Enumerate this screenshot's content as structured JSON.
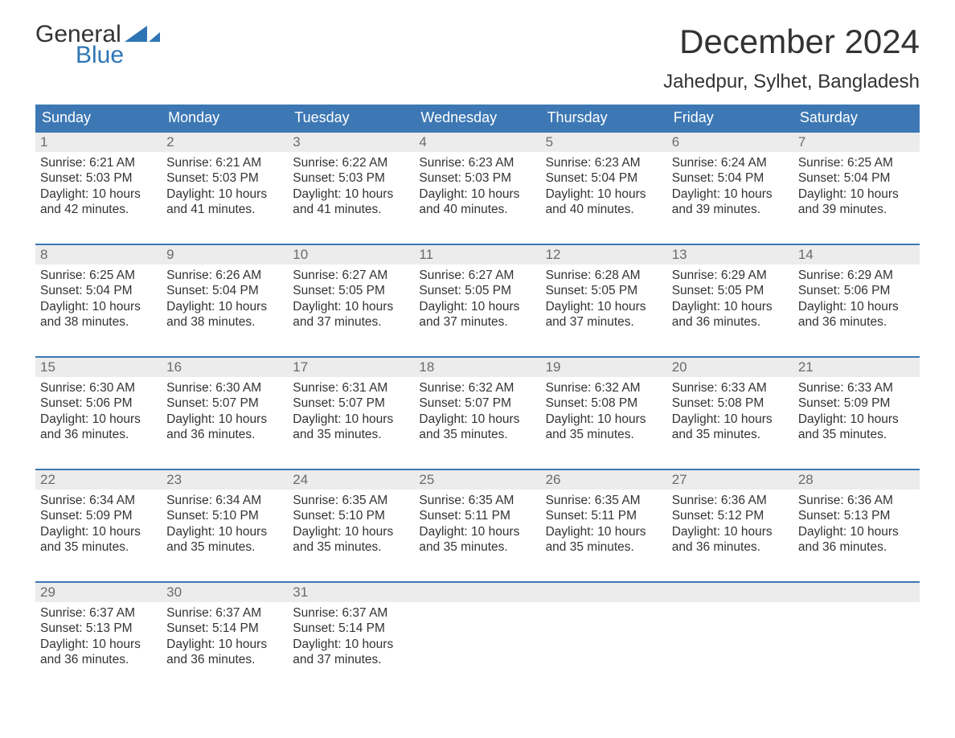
{
  "logo": {
    "line1": "General",
    "line2": "Blue",
    "tri_color": "#2f75b5"
  },
  "header": {
    "month_title": "December 2024",
    "location": "Jahedpur, Sylhet, Bangladesh"
  },
  "colors": {
    "header_bg": "#3d78b4",
    "header_text": "#ffffff",
    "row_accent": "#3d78b4",
    "daynum_bg": "#ececec",
    "daynum_text": "#6b6b6b",
    "body_text": "#333333",
    "logo_blue": "#2f75b5"
  },
  "calendar": {
    "days_of_week": [
      "Sunday",
      "Monday",
      "Tuesday",
      "Wednesday",
      "Thursday",
      "Friday",
      "Saturday"
    ],
    "weeks": [
      [
        {
          "n": "1",
          "sunrise": "Sunrise: 6:21 AM",
          "sunset": "Sunset: 5:03 PM",
          "dl1": "Daylight: 10 hours",
          "dl2": "and 42 minutes."
        },
        {
          "n": "2",
          "sunrise": "Sunrise: 6:21 AM",
          "sunset": "Sunset: 5:03 PM",
          "dl1": "Daylight: 10 hours",
          "dl2": "and 41 minutes."
        },
        {
          "n": "3",
          "sunrise": "Sunrise: 6:22 AM",
          "sunset": "Sunset: 5:03 PM",
          "dl1": "Daylight: 10 hours",
          "dl2": "and 41 minutes."
        },
        {
          "n": "4",
          "sunrise": "Sunrise: 6:23 AM",
          "sunset": "Sunset: 5:03 PM",
          "dl1": "Daylight: 10 hours",
          "dl2": "and 40 minutes."
        },
        {
          "n": "5",
          "sunrise": "Sunrise: 6:23 AM",
          "sunset": "Sunset: 5:04 PM",
          "dl1": "Daylight: 10 hours",
          "dl2": "and 40 minutes."
        },
        {
          "n": "6",
          "sunrise": "Sunrise: 6:24 AM",
          "sunset": "Sunset: 5:04 PM",
          "dl1": "Daylight: 10 hours",
          "dl2": "and 39 minutes."
        },
        {
          "n": "7",
          "sunrise": "Sunrise: 6:25 AM",
          "sunset": "Sunset: 5:04 PM",
          "dl1": "Daylight: 10 hours",
          "dl2": "and 39 minutes."
        }
      ],
      [
        {
          "n": "8",
          "sunrise": "Sunrise: 6:25 AM",
          "sunset": "Sunset: 5:04 PM",
          "dl1": "Daylight: 10 hours",
          "dl2": "and 38 minutes."
        },
        {
          "n": "9",
          "sunrise": "Sunrise: 6:26 AM",
          "sunset": "Sunset: 5:04 PM",
          "dl1": "Daylight: 10 hours",
          "dl2": "and 38 minutes."
        },
        {
          "n": "10",
          "sunrise": "Sunrise: 6:27 AM",
          "sunset": "Sunset: 5:05 PM",
          "dl1": "Daylight: 10 hours",
          "dl2": "and 37 minutes."
        },
        {
          "n": "11",
          "sunrise": "Sunrise: 6:27 AM",
          "sunset": "Sunset: 5:05 PM",
          "dl1": "Daylight: 10 hours",
          "dl2": "and 37 minutes."
        },
        {
          "n": "12",
          "sunrise": "Sunrise: 6:28 AM",
          "sunset": "Sunset: 5:05 PM",
          "dl1": "Daylight: 10 hours",
          "dl2": "and 37 minutes."
        },
        {
          "n": "13",
          "sunrise": "Sunrise: 6:29 AM",
          "sunset": "Sunset: 5:05 PM",
          "dl1": "Daylight: 10 hours",
          "dl2": "and 36 minutes."
        },
        {
          "n": "14",
          "sunrise": "Sunrise: 6:29 AM",
          "sunset": "Sunset: 5:06 PM",
          "dl1": "Daylight: 10 hours",
          "dl2": "and 36 minutes."
        }
      ],
      [
        {
          "n": "15",
          "sunrise": "Sunrise: 6:30 AM",
          "sunset": "Sunset: 5:06 PM",
          "dl1": "Daylight: 10 hours",
          "dl2": "and 36 minutes."
        },
        {
          "n": "16",
          "sunrise": "Sunrise: 6:30 AM",
          "sunset": "Sunset: 5:07 PM",
          "dl1": "Daylight: 10 hours",
          "dl2": "and 36 minutes."
        },
        {
          "n": "17",
          "sunrise": "Sunrise: 6:31 AM",
          "sunset": "Sunset: 5:07 PM",
          "dl1": "Daylight: 10 hours",
          "dl2": "and 35 minutes."
        },
        {
          "n": "18",
          "sunrise": "Sunrise: 6:32 AM",
          "sunset": "Sunset: 5:07 PM",
          "dl1": "Daylight: 10 hours",
          "dl2": "and 35 minutes."
        },
        {
          "n": "19",
          "sunrise": "Sunrise: 6:32 AM",
          "sunset": "Sunset: 5:08 PM",
          "dl1": "Daylight: 10 hours",
          "dl2": "and 35 minutes."
        },
        {
          "n": "20",
          "sunrise": "Sunrise: 6:33 AM",
          "sunset": "Sunset: 5:08 PM",
          "dl1": "Daylight: 10 hours",
          "dl2": "and 35 minutes."
        },
        {
          "n": "21",
          "sunrise": "Sunrise: 6:33 AM",
          "sunset": "Sunset: 5:09 PM",
          "dl1": "Daylight: 10 hours",
          "dl2": "and 35 minutes."
        }
      ],
      [
        {
          "n": "22",
          "sunrise": "Sunrise: 6:34 AM",
          "sunset": "Sunset: 5:09 PM",
          "dl1": "Daylight: 10 hours",
          "dl2": "and 35 minutes."
        },
        {
          "n": "23",
          "sunrise": "Sunrise: 6:34 AM",
          "sunset": "Sunset: 5:10 PM",
          "dl1": "Daylight: 10 hours",
          "dl2": "and 35 minutes."
        },
        {
          "n": "24",
          "sunrise": "Sunrise: 6:35 AM",
          "sunset": "Sunset: 5:10 PM",
          "dl1": "Daylight: 10 hours",
          "dl2": "and 35 minutes."
        },
        {
          "n": "25",
          "sunrise": "Sunrise: 6:35 AM",
          "sunset": "Sunset: 5:11 PM",
          "dl1": "Daylight: 10 hours",
          "dl2": "and 35 minutes."
        },
        {
          "n": "26",
          "sunrise": "Sunrise: 6:35 AM",
          "sunset": "Sunset: 5:11 PM",
          "dl1": "Daylight: 10 hours",
          "dl2": "and 35 minutes."
        },
        {
          "n": "27",
          "sunrise": "Sunrise: 6:36 AM",
          "sunset": "Sunset: 5:12 PM",
          "dl1": "Daylight: 10 hours",
          "dl2": "and 36 minutes."
        },
        {
          "n": "28",
          "sunrise": "Sunrise: 6:36 AM",
          "sunset": "Sunset: 5:13 PM",
          "dl1": "Daylight: 10 hours",
          "dl2": "and 36 minutes."
        }
      ],
      [
        {
          "n": "29",
          "sunrise": "Sunrise: 6:37 AM",
          "sunset": "Sunset: 5:13 PM",
          "dl1": "Daylight: 10 hours",
          "dl2": "and 36 minutes."
        },
        {
          "n": "30",
          "sunrise": "Sunrise: 6:37 AM",
          "sunset": "Sunset: 5:14 PM",
          "dl1": "Daylight: 10 hours",
          "dl2": "and 36 minutes."
        },
        {
          "n": "31",
          "sunrise": "Sunrise: 6:37 AM",
          "sunset": "Sunset: 5:14 PM",
          "dl1": "Daylight: 10 hours",
          "dl2": "and 37 minutes."
        },
        {
          "empty": true
        },
        {
          "empty": true
        },
        {
          "empty": true
        },
        {
          "empty": true
        }
      ]
    ]
  }
}
